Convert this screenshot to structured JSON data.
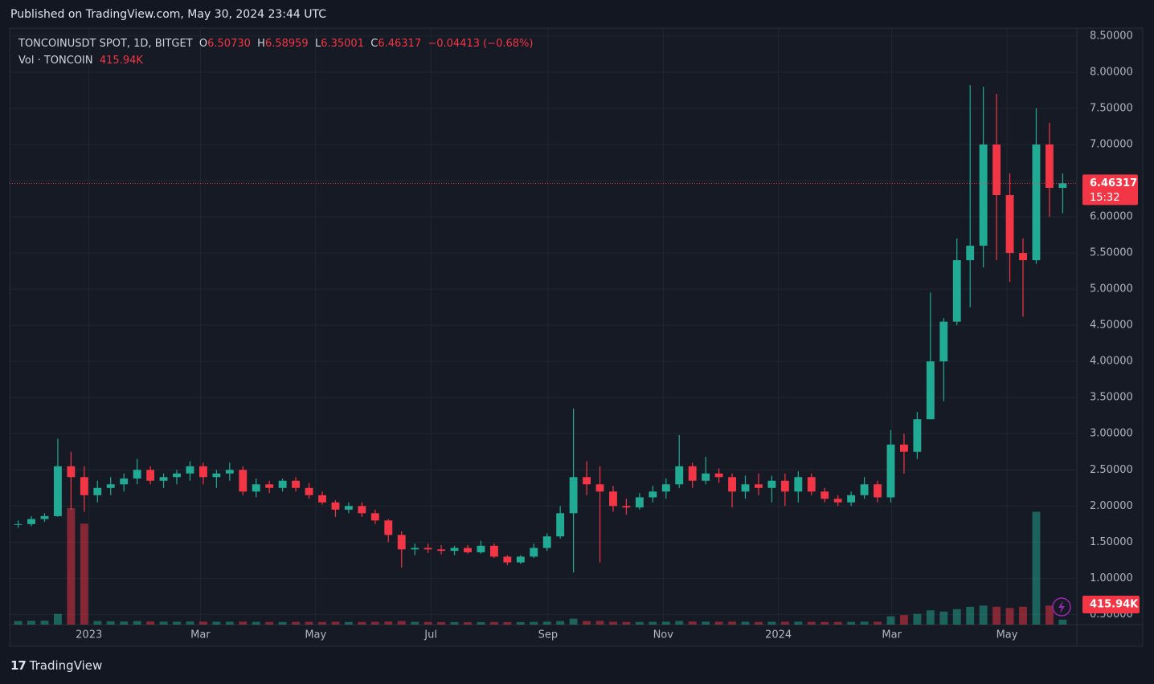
{
  "header": {
    "published": "Published on TradingView.com, May 30, 2024 23:44 UTC"
  },
  "legend": {
    "symbol": "TONCOINUSDT SPOT, 1D, BITGET",
    "o_label": "O",
    "o": "6.50730",
    "h_label": "H",
    "h": "6.58959",
    "l_label": "L",
    "l": "6.35001",
    "c_label": "C",
    "c": "6.46317",
    "change": "−0.04413 (−0.68%)",
    "vol_label": "Vol · TONCOIN",
    "vol": "415.94K"
  },
  "chart_data": {
    "type": "candlestick",
    "up_color": "#22ab94",
    "down_color": "#f23645",
    "x": [
      "2022-11-21",
      "2022-11-28",
      "2022-12-05",
      "2022-12-12",
      "2022-12-19",
      "2022-12-26",
      "2023-01-02",
      "2023-01-09",
      "2023-01-16",
      "2023-01-23",
      "2023-01-30",
      "2023-02-06",
      "2023-02-13",
      "2023-02-20",
      "2023-02-27",
      "2023-03-06",
      "2023-03-13",
      "2023-03-20",
      "2023-03-27",
      "2023-04-03",
      "2023-04-10",
      "2023-04-17",
      "2023-04-24",
      "2023-05-01",
      "2023-05-08",
      "2023-05-15",
      "2023-05-22",
      "2023-05-29",
      "2023-06-05",
      "2023-06-12",
      "2023-06-19",
      "2023-06-26",
      "2023-07-03",
      "2023-07-10",
      "2023-07-17",
      "2023-07-24",
      "2023-07-31",
      "2023-08-07",
      "2023-08-14",
      "2023-08-21",
      "2023-08-28",
      "2023-09-04",
      "2023-09-11",
      "2023-09-18",
      "2023-09-25",
      "2023-10-02",
      "2023-10-09",
      "2023-10-16",
      "2023-10-23",
      "2023-10-30",
      "2023-11-06",
      "2023-11-13",
      "2023-11-20",
      "2023-11-27",
      "2023-12-04",
      "2023-12-11",
      "2023-12-18",
      "2023-12-25",
      "2024-01-01",
      "2024-01-08",
      "2024-01-15",
      "2024-01-22",
      "2024-01-29",
      "2024-02-05",
      "2024-02-12",
      "2024-02-19",
      "2024-02-26",
      "2024-03-04",
      "2024-03-11",
      "2024-03-18",
      "2024-03-25",
      "2024-04-01",
      "2024-04-08",
      "2024-04-15",
      "2024-04-22",
      "2024-04-29",
      "2024-05-06",
      "2024-05-13",
      "2024-05-20",
      "2024-05-27"
    ],
    "open": [
      1.74,
      1.75,
      1.82,
      1.86,
      2.55,
      2.4,
      2.15,
      2.25,
      2.3,
      2.38,
      2.5,
      2.35,
      2.4,
      2.45,
      2.55,
      2.4,
      2.45,
      2.5,
      2.2,
      2.3,
      2.25,
      2.35,
      2.25,
      2.15,
      2.05,
      1.95,
      2.0,
      1.9,
      1.8,
      1.6,
      1.4,
      1.42,
      1.4,
      1.38,
      1.42,
      1.36,
      1.45,
      1.3,
      1.22,
      1.3,
      1.42,
      1.58,
      1.9,
      2.4,
      2.3,
      2.2,
      2.0,
      1.98,
      2.12,
      2.2,
      2.3,
      2.55,
      2.35,
      2.45,
      2.4,
      2.2,
      2.3,
      2.25,
      2.35,
      2.2,
      2.4,
      2.2,
      2.1,
      2.05,
      2.15,
      2.3,
      2.12,
      2.85,
      2.75,
      3.2,
      4.0,
      4.55,
      5.4,
      5.6,
      7.0,
      6.3,
      5.5,
      5.4,
      7.0,
      6.4
    ],
    "high": [
      1.8,
      1.86,
      1.9,
      2.93,
      2.75,
      2.55,
      2.35,
      2.4,
      2.45,
      2.65,
      2.55,
      2.45,
      2.5,
      2.62,
      2.6,
      2.5,
      2.6,
      2.55,
      2.38,
      2.35,
      2.38,
      2.4,
      2.32,
      2.2,
      2.08,
      2.05,
      2.05,
      1.95,
      1.82,
      1.65,
      1.48,
      1.48,
      1.46,
      1.45,
      1.46,
      1.52,
      1.48,
      1.32,
      1.32,
      1.48,
      1.62,
      2.0,
      3.35,
      2.62,
      2.55,
      2.28,
      2.1,
      2.18,
      2.28,
      2.38,
      2.98,
      2.6,
      2.68,
      2.52,
      2.45,
      2.42,
      2.45,
      2.42,
      2.45,
      2.48,
      2.45,
      2.25,
      2.15,
      2.2,
      2.4,
      2.35,
      3.05,
      3.0,
      3.3,
      4.95,
      4.6,
      5.7,
      7.82,
      7.8,
      7.7,
      6.6,
      5.7,
      7.5,
      7.3,
      6.6
    ],
    "low": [
      1.7,
      1.72,
      1.78,
      1.85,
      1.95,
      1.92,
      2.05,
      2.15,
      2.2,
      2.3,
      2.3,
      2.25,
      2.3,
      2.35,
      2.3,
      2.25,
      2.35,
      2.15,
      2.12,
      2.18,
      2.2,
      2.2,
      2.1,
      2.02,
      1.85,
      1.9,
      1.85,
      1.75,
      1.5,
      1.15,
      1.32,
      1.35,
      1.33,
      1.32,
      1.34,
      1.34,
      1.28,
      1.18,
      1.2,
      1.28,
      1.38,
      1.55,
      1.08,
      2.15,
      1.22,
      1.92,
      1.88,
      1.95,
      2.05,
      2.1,
      2.25,
      2.25,
      2.3,
      2.32,
      1.98,
      2.1,
      2.15,
      2.05,
      2.0,
      2.05,
      2.15,
      2.05,
      2.0,
      2.0,
      2.1,
      2.05,
      2.05,
      2.45,
      2.65,
      3.2,
      3.45,
      4.5,
      4.75,
      5.3,
      5.4,
      5.1,
      4.62,
      5.35,
      6.0,
      6.05
    ],
    "close": [
      1.75,
      1.82,
      1.86,
      2.55,
      2.4,
      2.15,
      2.25,
      2.3,
      2.38,
      2.5,
      2.35,
      2.4,
      2.45,
      2.55,
      2.4,
      2.45,
      2.5,
      2.2,
      2.3,
      2.25,
      2.35,
      2.25,
      2.15,
      2.05,
      1.95,
      2.0,
      1.9,
      1.8,
      1.6,
      1.4,
      1.42,
      1.4,
      1.38,
      1.42,
      1.36,
      1.45,
      1.3,
      1.22,
      1.3,
      1.42,
      1.58,
      1.9,
      2.4,
      2.3,
      2.2,
      2.0,
      1.98,
      2.12,
      2.2,
      2.3,
      2.55,
      2.35,
      2.45,
      2.4,
      2.2,
      2.3,
      2.25,
      2.35,
      2.2,
      2.4,
      2.2,
      2.1,
      2.05,
      2.15,
      2.3,
      2.12,
      2.85,
      2.75,
      3.2,
      4.0,
      4.55,
      5.4,
      5.6,
      7.0,
      6.3,
      5.5,
      5.4,
      7.0,
      6.4,
      6.46317
    ],
    "volume": [
      300,
      320,
      330,
      900,
      9800,
      8500,
      300,
      280,
      260,
      300,
      260,
      250,
      240,
      260,
      250,
      240,
      240,
      250,
      230,
      220,
      220,
      230,
      230,
      220,
      240,
      220,
      220,
      230,
      260,
      300,
      230,
      220,
      210,
      210,
      200,
      210,
      220,
      210,
      210,
      230,
      250,
      300,
      500,
      300,
      320,
      240,
      220,
      220,
      230,
      240,
      300,
      260,
      250,
      240,
      250,
      240,
      230,
      240,
      240,
      250,
      230,
      220,
      220,
      230,
      250,
      240,
      700,
      800,
      900,
      1200,
      1100,
      1300,
      1500,
      1600,
      1500,
      1400,
      1500,
      9500,
      1600,
      415.94
    ],
    "xlim": [
      "2022-11-20",
      "2024-06-07"
    ],
    "xticks": [
      {
        "value": "2023-01-01",
        "label": "2023"
      },
      {
        "value": "2023-03-01",
        "label": "Mar"
      },
      {
        "value": "2023-05-01",
        "label": "May"
      },
      {
        "value": "2023-07-01",
        "label": "Jul"
      },
      {
        "value": "2023-09-01",
        "label": "Sep"
      },
      {
        "value": "2023-11-01",
        "label": "Nov"
      },
      {
        "value": "2024-01-01",
        "label": "2024"
      },
      {
        "value": "2024-03-01",
        "label": "Mar"
      },
      {
        "value": "2024-05-01",
        "label": "May"
      }
    ],
    "ylim": [
      0.36,
      8.61
    ],
    "yticks": [
      {
        "value": 0.5,
        "label": "0.50000"
      },
      {
        "value": 1,
        "label": "1.00000"
      },
      {
        "value": 1.5,
        "label": "1.50000"
      },
      {
        "value": 2,
        "label": "2.00000"
      },
      {
        "value": 2.5,
        "label": "2.50000"
      },
      {
        "value": 3,
        "label": "3.00000"
      },
      {
        "value": 3.5,
        "label": "3.50000"
      },
      {
        "value": 4,
        "label": "4.00000"
      },
      {
        "value": 4.5,
        "label": "4.50000"
      },
      {
        "value": 5,
        "label": "5.00000"
      },
      {
        "value": 5.5,
        "label": "5.50000"
      },
      {
        "value": 6,
        "label": "6.00000"
      },
      {
        "value": 6.5,
        "label": "6.50000"
      },
      {
        "value": 7,
        "label": "7.00000"
      },
      {
        "value": 7.5,
        "label": "7.50000"
      },
      {
        "value": 8,
        "label": "8.00000"
      },
      {
        "value": 8.5,
        "label": "8.50000"
      }
    ],
    "grid": true,
    "last_price": {
      "value": 6.46317,
      "label": "6.46317"
    },
    "countdown": "15:32",
    "last_volume": "415.94K"
  },
  "footer": {
    "brand": "TradingView"
  }
}
